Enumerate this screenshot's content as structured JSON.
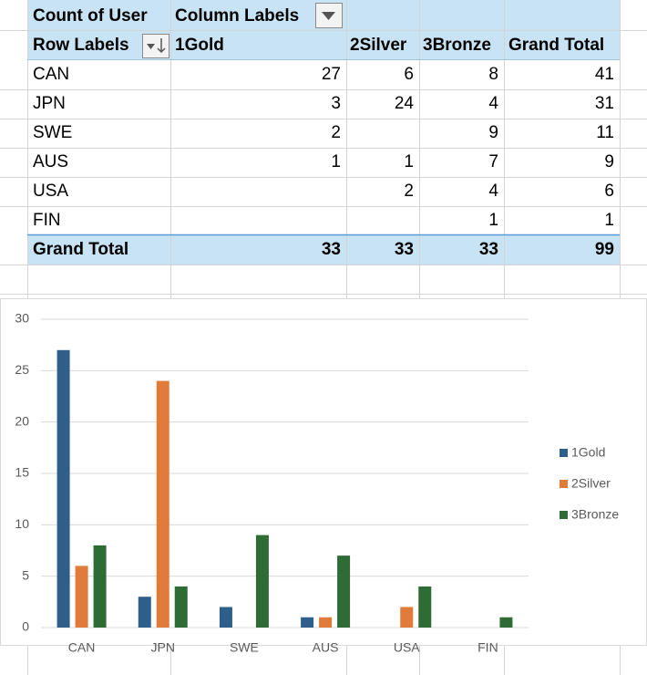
{
  "pivot": {
    "corner": "Count of User",
    "column_labels": "Column Labels",
    "row_labels": "Row Labels",
    "headers": [
      "1Gold",
      "2Silver",
      "3Bronze",
      "Grand Total"
    ],
    "rows": [
      {
        "label": "CAN",
        "cells": [
          27,
          6,
          8,
          41
        ]
      },
      {
        "label": "JPN",
        "cells": [
          3,
          24,
          4,
          31
        ]
      },
      {
        "label": "SWE",
        "cells": [
          2,
          null,
          9,
          11
        ]
      },
      {
        "label": "AUS",
        "cells": [
          1,
          1,
          7,
          9
        ]
      },
      {
        "label": "USA",
        "cells": [
          null,
          2,
          4,
          6
        ]
      },
      {
        "label": "FIN",
        "cells": [
          null,
          null,
          1,
          1
        ]
      }
    ],
    "grand_total": {
      "label": "Grand Total",
      "cells": [
        33,
        33,
        33,
        99
      ]
    }
  },
  "chart_data": {
    "type": "bar",
    "categories": [
      "CAN",
      "JPN",
      "SWE",
      "AUS",
      "USA",
      "FIN"
    ],
    "series": [
      {
        "name": "1Gold",
        "color": "#2e5f8a",
        "values": [
          27,
          3,
          2,
          1,
          null,
          null
        ]
      },
      {
        "name": "2Silver",
        "color": "#e07b39",
        "values": [
          6,
          24,
          null,
          1,
          2,
          null
        ]
      },
      {
        "name": "3Bronze",
        "color": "#2f6b35",
        "values": [
          8,
          4,
          9,
          7,
          4,
          1
        ]
      }
    ],
    "ylim": [
      0,
      30
    ],
    "yticks": [
      0,
      5,
      10,
      15,
      20,
      25,
      30
    ],
    "grid": true,
    "legend": "right"
  }
}
